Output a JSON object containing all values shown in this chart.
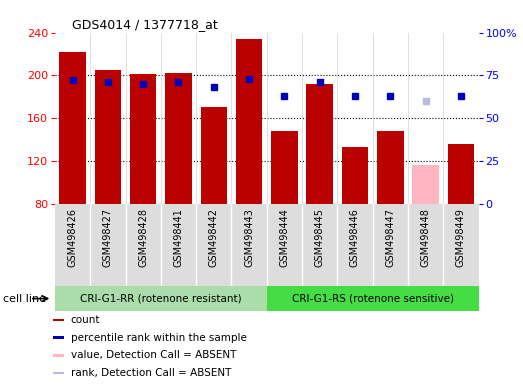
{
  "title": "GDS4014 / 1377718_at",
  "samples": [
    "GSM498426",
    "GSM498427",
    "GSM498428",
    "GSM498441",
    "GSM498442",
    "GSM498443",
    "GSM498444",
    "GSM498445",
    "GSM498446",
    "GSM498447",
    "GSM498448",
    "GSM498449"
  ],
  "counts": [
    222,
    205,
    201,
    202,
    170,
    234,
    148,
    192,
    133,
    148,
    116,
    136
  ],
  "percentile_ranks": [
    72,
    71,
    70,
    71,
    68,
    73,
    63,
    71,
    63,
    63,
    60,
    63
  ],
  "absent_flags": [
    false,
    false,
    false,
    false,
    false,
    false,
    false,
    false,
    false,
    false,
    true,
    false
  ],
  "ymin": 80,
  "ymax": 240,
  "yticks": [
    80,
    120,
    160,
    200,
    240
  ],
  "right_yticks": [
    0,
    25,
    50,
    75,
    100
  ],
  "right_ytick_labels": [
    "0",
    "25",
    "50",
    "75",
    "100%"
  ],
  "bar_color": "#BB0000",
  "absent_bar_color": "#FFB6C1",
  "rank_color": "#0000BB",
  "absent_rank_color": "#BBBBDD",
  "group1_label": "CRI-G1-RR (rotenone resistant)",
  "group2_label": "CRI-G1-RS (rotenone sensitive)",
  "group1_color": "#AADDAA",
  "group2_color": "#44DD44",
  "cell_line_label": "cell line",
  "group1_count": 6,
  "group2_count": 6,
  "legend_items": [
    {
      "label": "count",
      "color": "#BB0000"
    },
    {
      "label": "percentile rank within the sample",
      "color": "#0000BB"
    },
    {
      "label": "value, Detection Call = ABSENT",
      "color": "#FFB6C1"
    },
    {
      "label": "rank, Detection Call = ABSENT",
      "color": "#BBBBDD"
    }
  ]
}
